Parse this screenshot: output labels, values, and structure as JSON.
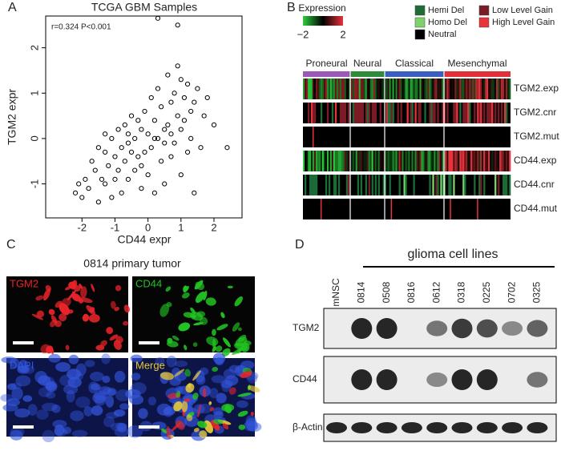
{
  "panel_labels": [
    "A",
    "B",
    "C",
    "D"
  ],
  "chart_data": {
    "type": "scatter",
    "title": "TCGA GBM Samples",
    "x_label": "CD44 expr",
    "y_label": "TGM2 expr",
    "annotation": "r=0.324  P<0.001",
    "color": "#000000",
    "xlim": [
      -3.1,
      2.85
    ],
    "xticks": [
      -2,
      -1,
      0,
      1,
      2
    ],
    "ylim": [
      -1.75,
      2.7
    ],
    "yticks": [
      -1,
      0,
      1,
      2
    ],
    "x": [
      -2.2,
      -2.1,
      -2.0,
      -1.9,
      -1.8,
      -1.7,
      -1.6,
      -1.5,
      -1.5,
      -1.4,
      -1.3,
      -1.3,
      -1.2,
      -1.1,
      -1.1,
      -1.0,
      -1.0,
      -0.9,
      -0.9,
      -0.8,
      -0.8,
      -0.7,
      -0.7,
      -0.6,
      -0.6,
      -0.5,
      -0.5,
      -0.4,
      -0.4,
      -0.3,
      -0.3,
      -0.2,
      -0.2,
      -0.1,
      -0.1,
      0,
      0,
      0.1,
      0.1,
      0.2,
      0.2,
      0.3,
      0.3,
      0.4,
      0.4,
      0.5,
      0.5,
      0.6,
      0.6,
      0.7,
      0.7,
      0.8,
      0.8,
      0.9,
      0.9,
      1.0,
      1.0,
      1.1,
      1.1,
      1.2,
      1.2,
      1.3,
      1.3,
      1.4,
      1.5,
      1.6,
      1.7,
      1.8,
      2.0,
      2.4,
      0.3,
      0.9,
      -1.3,
      -0.6,
      0.2,
      0.5,
      1.0,
      -0.2,
      0.7,
      1.4
    ],
    "values": [
      -1.2,
      -1.0,
      -1.3,
      -0.9,
      -1.1,
      -0.5,
      -0.7,
      -1.4,
      -0.2,
      -0.9,
      -0.3,
      -1.0,
      -0.6,
      0.0,
      -1.3,
      -0.4,
      -0.9,
      0.2,
      -0.7,
      -0.2,
      -1.2,
      0.3,
      -0.5,
      0.1,
      -0.9,
      -0.3,
      0.5,
      0.0,
      -0.7,
      0.4,
      -0.4,
      -1.1,
      0.2,
      0.6,
      -0.3,
      0.1,
      -0.8,
      0.9,
      -0.2,
      0.4,
      -1.2,
      1.1,
      0.0,
      -0.5,
      0.7,
      0.2,
      -1.0,
      1.4,
      0.3,
      -0.4,
      0.8,
      1.0,
      -0.1,
      0.5,
      1.6,
      0.2,
      -0.8,
      0.9,
      0.4,
      1.2,
      -0.3,
      0.6,
      0.0,
      0.8,
      1.1,
      -0.2,
      0.5,
      0.9,
      0.3,
      -0.2,
      2.65,
      2.5,
      0.1,
      -0.1,
      0.0,
      -0.1,
      1.3,
      -0.6,
      0.1,
      -1.2
    ]
  },
  "heatmap": {
    "legend_title": "Expression",
    "scale_ticks": [
      {
        "value": -2,
        "label": "−2"
      },
      2
    ],
    "cnv_legend": [
      {
        "name": "Hemi Del",
        "color": "#1d6b36"
      },
      {
        "name": "Homo Del",
        "color": "#7dd36a"
      },
      {
        "name": "Neutral",
        "color": "#000000"
      },
      {
        "name": "Low Level Gain",
        "color": "#7a1b25"
      },
      {
        "name": "High Level Gain",
        "color": "#e8323c"
      }
    ],
    "subtypes": [
      {
        "name": "Proneural",
        "color": "#9b59b6"
      },
      {
        "name": "Neural",
        "color": "#2e8b3a"
      },
      {
        "name": "Classical",
        "color": "#3a5fbf"
      },
      {
        "name": "Mesenchymal",
        "color": "#e0303a"
      }
    ],
    "rows": [
      "TGM2.exp",
      "TGM2.cnr",
      "TGM2.mut",
      "CD44.exp",
      "CD44.cnr",
      "CD44.mut"
    ]
  },
  "micrographs": {
    "title": "0814 primary tumor",
    "channels": [
      {
        "name": "TGM2",
        "color": "#e8242a"
      },
      {
        "name": "CD44",
        "color": "#22c322"
      },
      {
        "name": "DAPI",
        "color": "#3355dd"
      },
      {
        "name": "Merge",
        "color": "#e6c83a"
      }
    ]
  },
  "western_blot": {
    "title": "glioma cell lines",
    "lanes": [
      "mNSC",
      "0814",
      "0508",
      "0816",
      "0612",
      "0318",
      "0225",
      "0702",
      "0325"
    ],
    "bands": [
      {
        "name": "TGM2",
        "intensity": [
          0,
          1,
          1,
          0,
          0.6,
          0.9,
          0.8,
          0.5,
          0.7
        ]
      },
      {
        "name": "CD44",
        "intensity": [
          0,
          1,
          1,
          0,
          0.5,
          1,
          1,
          0,
          0.6
        ]
      },
      {
        "name": "β-Actin",
        "intensity": [
          1,
          1,
          1,
          1,
          1,
          1,
          1,
          1,
          1
        ]
      }
    ]
  }
}
